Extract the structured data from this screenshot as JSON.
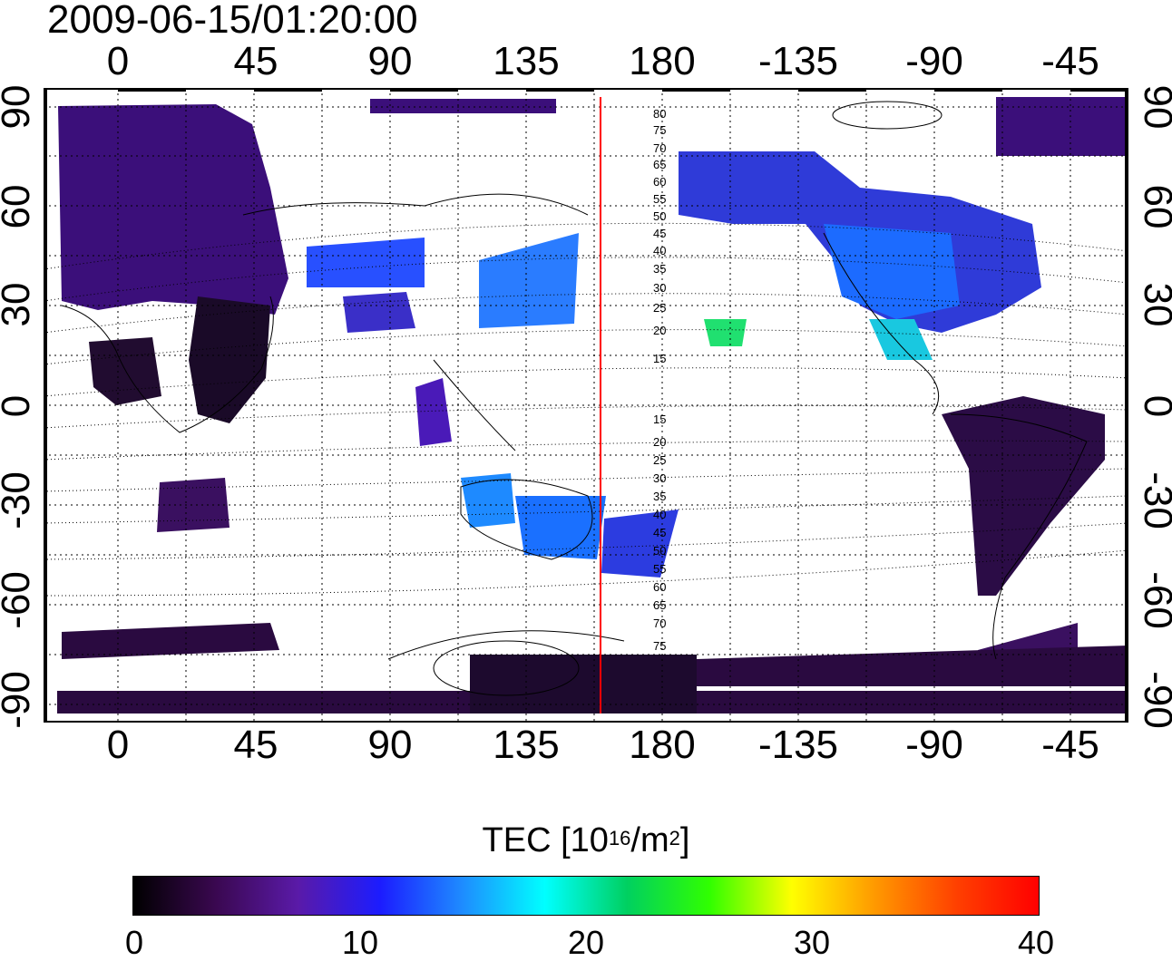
{
  "timestamp": "2009-06-15/01:20:00",
  "map": {
    "type": "global TEC map",
    "projection": "equirectangular",
    "top_ticks": [
      "0",
      "45",
      "90",
      "135",
      "180",
      "-135",
      "-90",
      "-45"
    ],
    "bottom_ticks": [
      "0",
      "45",
      "90",
      "135",
      "180",
      "-135",
      "-90",
      "-45"
    ],
    "left_ticks": [
      "90",
      "60",
      "30",
      "0",
      "-30",
      "-60",
      "-90"
    ],
    "right_ticks": [
      "90",
      "60",
      "30",
      "0",
      "-30",
      "-60",
      "-90"
    ],
    "contour_labels": [
      "80",
      "75",
      "70",
      "65",
      "60",
      "55",
      "50",
      "45",
      "40",
      "35",
      "30",
      "25",
      "20",
      "15",
      "15",
      "20",
      "25",
      "30",
      "35",
      "40",
      "45",
      "50",
      "55",
      "60",
      "65",
      "70",
      "75"
    ],
    "marker_line_color": "#ff0000"
  },
  "colorbar": {
    "title_prefix": "TEC  [10",
    "title_sup1": "16",
    "title_mid": "/m",
    "title_sup2": "2",
    "title_suffix": "]",
    "ticks": [
      "0",
      "10",
      "20",
      "30",
      "40"
    ],
    "range": [
      0,
      40
    ],
    "colors": [
      "#000000",
      "#3a0850",
      "#5a1aa8",
      "#1c1cff",
      "#1e8cff",
      "#00ffff",
      "#00d060",
      "#30ff00",
      "#ffff00",
      "#ff9a00",
      "#ff4000",
      "#ff0000"
    ]
  }
}
